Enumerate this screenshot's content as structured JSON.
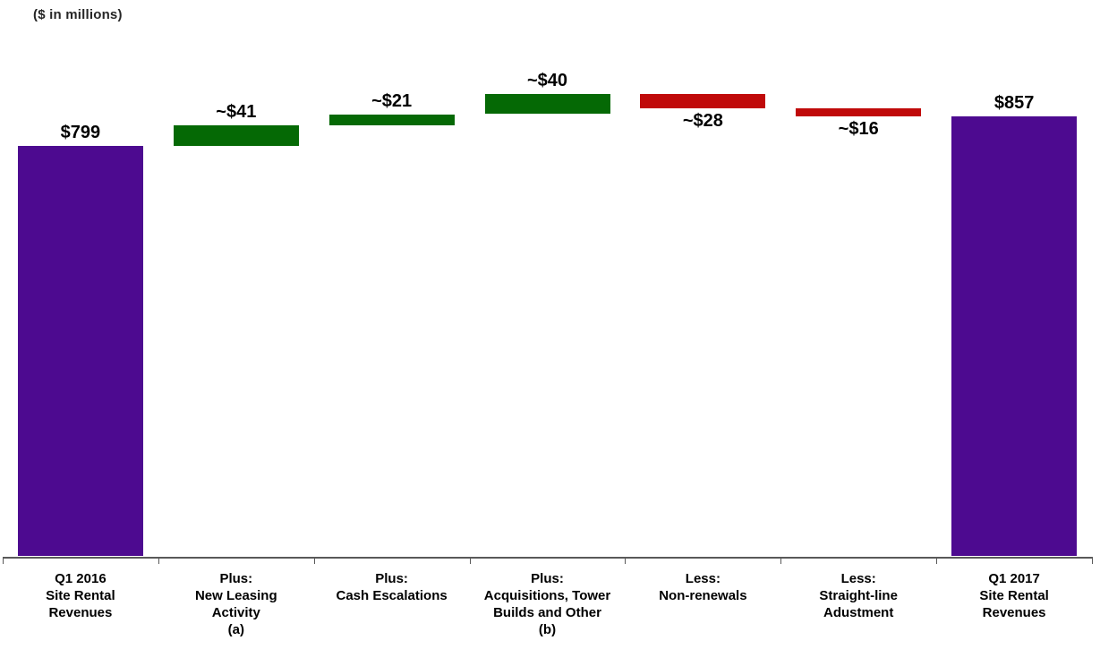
{
  "note": "($ in millions)",
  "chart_data": {
    "type": "bar",
    "subtype": "waterfall",
    "title": "",
    "unit_label": "($ in millions)",
    "xlabel": "",
    "ylabel": "",
    "axis_visible": "x-only",
    "grid": false,
    "legend": false,
    "ylim": [
      0,
      901
    ],
    "colors": {
      "total": "#4D0A90",
      "increase": "#056905",
      "decrease": "#C00A0A",
      "axis": "#595959",
      "text": "#000000"
    },
    "categories": [
      {
        "lines": [
          "Q1 2016",
          "Site Rental",
          "Revenues"
        ]
      },
      {
        "lines": [
          "Plus:",
          "New Leasing",
          "Activity",
          "(a)"
        ]
      },
      {
        "lines": [
          "Plus:",
          "Cash Escalations"
        ]
      },
      {
        "lines": [
          "Plus:",
          "Acquisitions, Tower",
          "Builds and Other",
          "(b)"
        ]
      },
      {
        "lines": [
          "Less:",
          "Non-renewals"
        ]
      },
      {
        "lines": [
          "Less:",
          "Straight-line",
          "Adustment"
        ]
      },
      {
        "lines": [
          "Q1 2017",
          "Site Rental",
          "Revenues"
        ]
      }
    ],
    "bars": [
      {
        "name": "q1-2016-site-rental-revenues",
        "kind": "total",
        "value": 799,
        "display": "$799",
        "label_position": "above"
      },
      {
        "name": "new-leasing-activity",
        "kind": "increase",
        "value": 41,
        "display": "~$41",
        "label_position": "above"
      },
      {
        "name": "cash-escalations",
        "kind": "increase",
        "value": 21,
        "display": "~$21",
        "label_position": "above"
      },
      {
        "name": "acquisitions-tower-builds",
        "kind": "increase",
        "value": 40,
        "display": "~$40",
        "label_position": "above"
      },
      {
        "name": "non-renewals",
        "kind": "decrease",
        "value": 28,
        "display": "~$28",
        "label_position": "below"
      },
      {
        "name": "straight-line-adjustment",
        "kind": "decrease",
        "value": 16,
        "display": "~$16",
        "label_position": "below"
      },
      {
        "name": "q1-2017-site-rental-revenues",
        "kind": "total",
        "value": 857,
        "display": "$857",
        "label_position": "above"
      }
    ],
    "running_totals": [
      799,
      840,
      861,
      901,
      873,
      857,
      857
    ]
  }
}
